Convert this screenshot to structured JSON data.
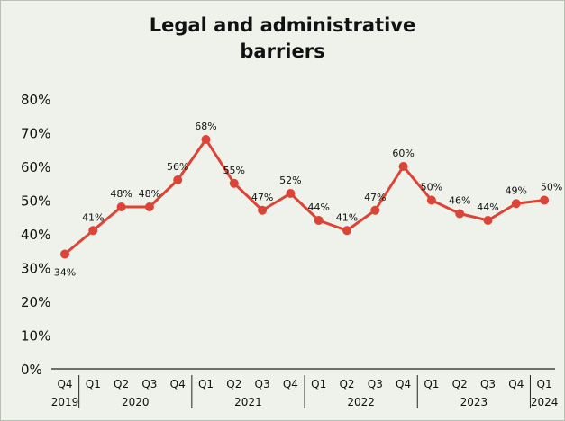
{
  "chart_data": {
    "type": "line",
    "title_lines": [
      "Legal and administrative",
      "barriers"
    ],
    "xlabel": "",
    "ylabel": "",
    "ylim": [
      0,
      80
    ],
    "yticks": [
      "0%",
      "10%",
      "20%",
      "30%",
      "40%",
      "50%",
      "60%",
      "70%",
      "80%"
    ],
    "grid": false,
    "color": "#dd4438",
    "quarters": [
      "Q4",
      "Q1",
      "Q2",
      "Q3",
      "Q4",
      "Q1",
      "Q2",
      "Q3",
      "Q4",
      "Q1",
      "Q2",
      "Q3",
      "Q4",
      "Q1",
      "Q2",
      "Q3",
      "Q4",
      "Q1"
    ],
    "years": [
      {
        "label": "2019",
        "start": 0,
        "end": 0
      },
      {
        "label": "2020",
        "start": 1,
        "end": 4
      },
      {
        "label": "2021",
        "start": 5,
        "end": 8
      },
      {
        "label": "2022",
        "start": 9,
        "end": 12
      },
      {
        "label": "2023",
        "start": 13,
        "end": 16
      },
      {
        "label": "2024",
        "start": 17,
        "end": 17
      }
    ],
    "series": [
      {
        "values": [
          34,
          41,
          48,
          48,
          56,
          68,
          55,
          47,
          52,
          44,
          41,
          47,
          60,
          50,
          46,
          44,
          49,
          50
        ],
        "labels": [
          "34%",
          "41%",
          "48%",
          "48%",
          "56%",
          "68%",
          "55%",
          "47%",
          "52%",
          "44%",
          "41%",
          "47%",
          "60%",
          "50%",
          "46%",
          "44%",
          "49%",
          "50%"
        ]
      }
    ]
  }
}
